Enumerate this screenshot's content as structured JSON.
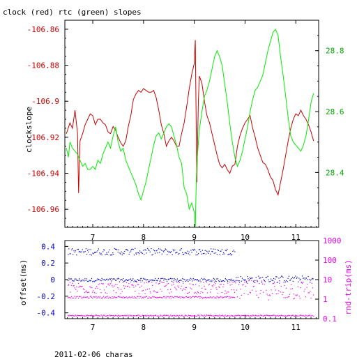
{
  "title": "clock (red) rtc (green) slopes",
  "footer": "2011-02-06 charas",
  "colors": {
    "clock": "#cc0000",
    "rtc": "#00ee00",
    "offset": "#0000cc",
    "rtt": "#ee00ee",
    "axis": "#000000"
  },
  "chart_data": [
    {
      "type": "line",
      "title": "clock (red) rtc (green) slopes",
      "xlabel": "",
      "ylabel": "clockslope",
      "xlim": [
        6.45,
        11.45
      ],
      "ylim_left": [
        -106.97,
        -106.855
      ],
      "ylim_right": [
        28.22,
        28.9
      ],
      "x_ticks": [
        "7",
        "8",
        "9",
        "10",
        "11"
      ],
      "y_ticks_left": [
        "-106.86",
        "-106.88",
        "-106.9",
        "-106.92",
        "-106.94",
        "-106.96"
      ],
      "y_ticks_right": [
        "28.8",
        "28.6",
        "28.4"
      ],
      "series": [
        {
          "name": "clock",
          "axis": "left",
          "color": "#cc0000",
          "x": [
            6.48,
            6.55,
            6.6,
            6.65,
            6.7,
            6.72,
            6.75,
            6.8,
            6.85,
            6.9,
            6.95,
            7.0,
            7.05,
            7.1,
            7.15,
            7.2,
            7.25,
            7.3,
            7.35,
            7.4,
            7.45,
            7.5,
            7.55,
            7.6,
            7.65,
            7.7,
            7.75,
            7.8,
            7.85,
            7.9,
            7.95,
            8.0,
            8.05,
            8.1,
            8.15,
            8.2,
            8.25,
            8.3,
            8.35,
            8.4,
            8.45,
            8.5,
            8.55,
            8.6,
            8.65,
            8.7,
            8.75,
            8.8,
            8.85,
            8.9,
            8.95,
            9.0,
            9.02,
            9.05,
            9.08,
            9.1,
            9.15,
            9.2,
            9.25,
            9.3,
            9.35,
            9.4,
            9.45,
            9.5,
            9.55,
            9.6,
            9.65,
            9.7,
            9.75,
            9.8,
            9.85,
            9.9,
            9.95,
            10.0,
            10.05,
            10.1,
            10.15,
            10.2,
            10.25,
            10.3,
            10.35,
            10.4,
            10.45,
            10.5,
            10.55,
            10.6,
            10.65,
            10.7,
            10.75,
            10.8,
            10.85,
            10.9,
            10.95,
            11.0,
            11.05,
            11.1,
            11.15,
            11.2,
            11.25,
            11.3,
            11.35
          ],
          "y": [
            -106.918,
            -106.912,
            -106.915,
            -106.905,
            -106.918,
            -106.951,
            -106.922,
            -106.918,
            -106.913,
            -106.91,
            -106.907,
            -106.908,
            -106.913,
            -106.91,
            -106.91,
            -106.912,
            -106.913,
            -106.917,
            -106.918,
            -106.914,
            -106.916,
            -106.92,
            -106.923,
            -106.925,
            -106.922,
            -106.914,
            -106.908,
            -106.899,
            -106.896,
            -106.894,
            -106.895,
            -106.893,
            -106.894,
            -106.895,
            -106.895,
            -106.894,
            -106.898,
            -106.905,
            -106.913,
            -106.918,
            -106.925,
            -106.922,
            -106.92,
            -106.922,
            -106.925,
            -106.925,
            -106.918,
            -106.912,
            -106.903,
            -106.893,
            -106.885,
            -106.879,
            -106.866,
            -106.945,
            -106.9,
            -106.886,
            -106.89,
            -106.9,
            -106.908,
            -106.912,
            -106.918,
            -106.924,
            -106.93,
            -106.935,
            -106.937,
            -106.935,
            -106.938,
            -106.94,
            -106.936,
            -106.935,
            -106.925,
            -106.919,
            -106.915,
            -106.912,
            -106.91,
            -106.908,
            -106.915,
            -106.92,
            -106.926,
            -106.93,
            -106.934,
            -106.935,
            -106.938,
            -106.942,
            -106.944,
            -106.949,
            -106.952,
            -106.945,
            -106.938,
            -106.93,
            -106.922,
            -106.915,
            -106.91,
            -106.907,
            -106.908,
            -106.905,
            -106.908,
            -106.91,
            -106.913,
            -106.917,
            -106.922
          ]
        },
        {
          "name": "rtc",
          "axis": "right",
          "color": "#00ee00",
          "x": [
            6.48,
            6.52,
            6.55,
            6.6,
            6.65,
            6.7,
            6.75,
            6.8,
            6.85,
            6.9,
            6.95,
            7.0,
            7.05,
            7.1,
            7.15,
            7.2,
            7.25,
            7.3,
            7.35,
            7.4,
            7.45,
            7.5,
            7.55,
            7.6,
            7.65,
            7.7,
            7.75,
            7.8,
            7.85,
            7.9,
            7.95,
            8.0,
            8.05,
            8.1,
            8.15,
            8.2,
            8.25,
            8.3,
            8.35,
            8.4,
            8.45,
            8.5,
            8.55,
            8.6,
            8.65,
            8.7,
            8.75,
            8.8,
            8.85,
            8.9,
            8.95,
            9.0,
            9.02,
            9.04,
            9.06,
            9.1,
            9.15,
            9.2,
            9.25,
            9.3,
            9.35,
            9.4,
            9.45,
            9.5,
            9.55,
            9.6,
            9.65,
            9.7,
            9.75,
            9.8,
            9.85,
            9.9,
            9.95,
            10.0,
            10.05,
            10.1,
            10.15,
            10.2,
            10.25,
            10.3,
            10.35,
            10.4,
            10.45,
            10.5,
            10.55,
            10.6,
            10.65,
            10.7,
            10.75,
            10.8,
            10.85,
            10.9,
            10.95,
            11.0,
            11.05,
            11.1,
            11.15,
            11.2,
            11.25,
            11.3,
            11.35
          ],
          "y": [
            28.48,
            28.45,
            28.5,
            28.48,
            28.47,
            28.46,
            28.44,
            28.42,
            28.43,
            28.41,
            28.41,
            28.42,
            28.41,
            28.44,
            28.43,
            28.46,
            28.48,
            28.5,
            28.48,
            28.52,
            28.55,
            28.5,
            28.47,
            28.48,
            28.44,
            28.42,
            28.4,
            28.38,
            28.36,
            28.33,
            28.31,
            28.34,
            28.37,
            28.41,
            28.45,
            28.49,
            28.52,
            28.53,
            28.51,
            28.53,
            28.55,
            28.56,
            28.55,
            28.52,
            28.49,
            28.45,
            28.43,
            28.35,
            28.33,
            28.28,
            28.3,
            28.27,
            28.22,
            28.38,
            28.45,
            28.54,
            28.6,
            28.65,
            28.67,
            28.7,
            28.74,
            28.78,
            28.8,
            28.78,
            28.75,
            28.69,
            28.63,
            28.56,
            28.5,
            28.45,
            28.42,
            28.44,
            28.47,
            28.51,
            28.55,
            28.6,
            28.64,
            28.67,
            28.68,
            28.7,
            28.72,
            28.76,
            28.8,
            28.83,
            28.86,
            28.87,
            28.85,
            28.78,
            28.72,
            28.65,
            28.58,
            28.52,
            28.5,
            28.49,
            28.48,
            28.47,
            28.49,
            28.52,
            28.57,
            28.63,
            28.66
          ]
        }
      ]
    },
    {
      "type": "scatter",
      "xlabel": "",
      "ylabel_left": "offset(ms)",
      "ylabel_right": "rnd-trip(ms)",
      "xlim": [
        6.45,
        11.45
      ],
      "ylim_left": [
        -0.47,
        0.47
      ],
      "ylim_right_log10": [
        -1,
        3
      ],
      "x_ticks": [
        "7",
        "8",
        "9",
        "10",
        "11"
      ],
      "y_ticks_left": [
        "0.4",
        "0.2",
        "0",
        "-0.2",
        "-0.4"
      ],
      "y_ticks_right": [
        "1000",
        "100",
        "10",
        "1",
        "0.1"
      ],
      "series": [
        {
          "name": "offset",
          "axis": "left",
          "color": "#0000cc",
          "bands": [
            {
              "x_from": 6.5,
              "x_to": 9.8,
              "y": 0.0,
              "spread": 0.02
            },
            {
              "x_from": 6.5,
              "x_to": 9.8,
              "y": 0.34,
              "spread": 0.04
            },
            {
              "x_from": 9.8,
              "x_to": 11.35,
              "y": 0.01,
              "spread": 0.04
            }
          ]
        },
        {
          "name": "rnd-trip",
          "axis": "right",
          "color": "#ee00ee",
          "bands": [
            {
              "x_from": 6.5,
              "x_to": 11.35,
              "y": 0.15,
              "spread": 0.03
            },
            {
              "x_from": 6.5,
              "x_to": 9.8,
              "y": 1.3,
              "spread": 0.05
            },
            {
              "x_from": 6.5,
              "x_to": 9.8,
              "y": 4,
              "spread": 0.3
            },
            {
              "x_from": 9.8,
              "x_to": 11.35,
              "y": 3,
              "spread": 0.5
            }
          ]
        }
      ]
    }
  ]
}
